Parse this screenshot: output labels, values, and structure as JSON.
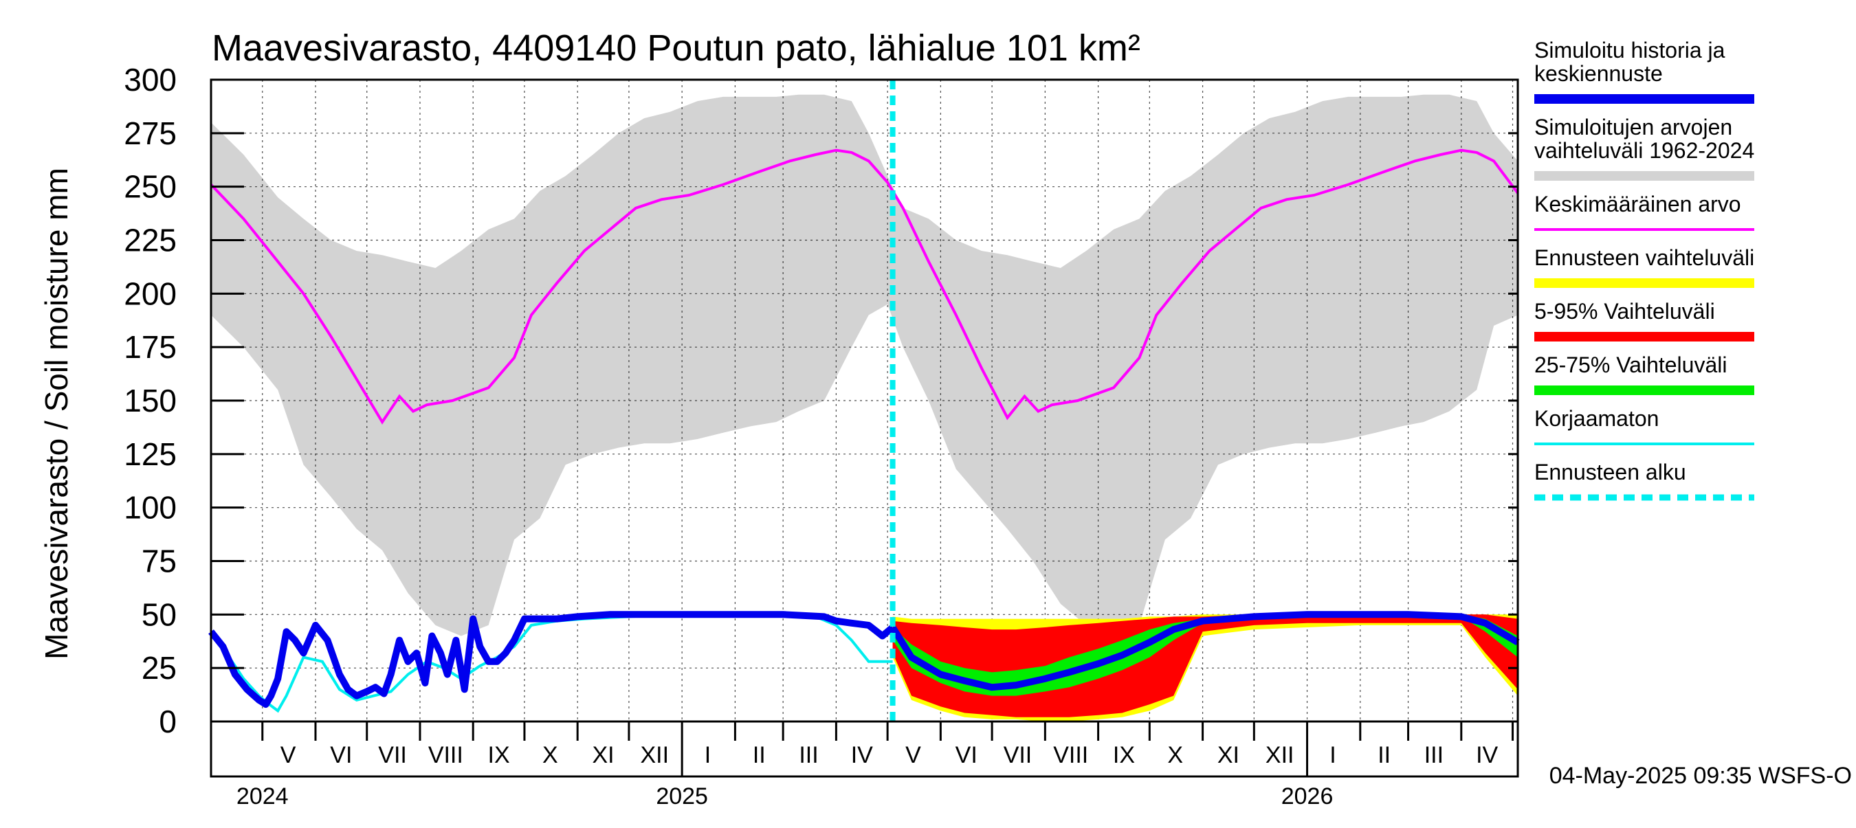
{
  "chart_data": {
    "type": "area",
    "title": "Maavesivarasto, 4409140 Poutun pato, lähialue 101 km²",
    "ylabel": "Maavesivarasto / Soil moisture   mm",
    "ylim": [
      0,
      300
    ],
    "y_ticks": [
      0,
      25,
      50,
      75,
      100,
      125,
      150,
      175,
      200,
      225,
      250,
      275,
      300
    ],
    "x_start": "2024-04-01",
    "x_end": "2026-05-04",
    "grid": true,
    "month_labels": [
      "V",
      "VI",
      "VII",
      "VIII",
      "IX",
      "X",
      "XI",
      "XII",
      "I",
      "II",
      "III",
      "IV",
      "V",
      "VI",
      "VII",
      "VIII",
      "IX",
      "X",
      "XI",
      "XII",
      "I",
      "II",
      "III",
      "IV"
    ],
    "month_label_dates": [
      "2024-05-16",
      "2024-06-16",
      "2024-07-16",
      "2024-08-16",
      "2024-09-16",
      "2024-10-16",
      "2024-11-16",
      "2024-12-16",
      "2025-01-16",
      "2025-02-15",
      "2025-03-16",
      "2025-04-16",
      "2025-05-16",
      "2025-06-16",
      "2025-07-16",
      "2025-08-16",
      "2025-09-16",
      "2025-10-16",
      "2025-11-16",
      "2025-12-16",
      "2026-01-16",
      "2026-02-15",
      "2026-03-16",
      "2026-04-16"
    ],
    "year_labels": [
      {
        "label": "2024",
        "date": "2024-05-01"
      },
      {
        "label": "2025",
        "date": "2025-01-01"
      },
      {
        "label": "2026",
        "date": "2026-01-01"
      }
    ],
    "forecast_start": "2025-05-04",
    "footer": "04-May-2025 09:35 WSFS-O",
    "colors": {
      "history": "#0000ee",
      "range": "#d3d3d3",
      "mean": "#ff00ff",
      "forecast_range": "#ffff00",
      "p5_95": "#ff0000",
      "p25_75": "#00ee00",
      "uncorrected": "#00eeee",
      "forecast_start": "#00eeee"
    },
    "legend": [
      {
        "label": "Simuloitu historia ja keskiennuste",
        "key": "history",
        "style": "thick"
      },
      {
        "label": "Simuloitujen arvojen vaihteluväli 1962-2024",
        "key": "range",
        "style": "thick"
      },
      {
        "label": "Keskimääräinen arvo",
        "key": "mean",
        "style": "thin"
      },
      {
        "label": "Ennusteen vaihteluväli",
        "key": "forecast_range",
        "style": "thick"
      },
      {
        "label": "5-95% Vaihteluväli",
        "key": "p5_95",
        "style": "thick"
      },
      {
        "label": "25-75% Vaihteluväli",
        "key": "p25_75",
        "style": "thick"
      },
      {
        "label": "Korjaamaton",
        "key": "uncorrected",
        "style": "thin"
      },
      {
        "label": "Ennusteen alku",
        "key": "forecast_start",
        "style": "dashed"
      }
    ],
    "range_band": {
      "x": [
        "2024-04-01",
        "2024-04-20",
        "2024-05-10",
        "2024-05-25",
        "2024-06-10",
        "2024-06-25",
        "2024-07-10",
        "2024-07-25",
        "2024-08-10",
        "2024-08-25",
        "2024-09-10",
        "2024-09-25",
        "2024-10-10",
        "2024-10-25",
        "2024-11-10",
        "2024-11-25",
        "2024-12-10",
        "2024-12-25",
        "2025-01-10",
        "2025-01-25",
        "2025-02-10",
        "2025-02-25",
        "2025-03-10",
        "2025-03-25",
        "2025-04-10",
        "2025-04-20",
        "2025-05-01",
        "2025-05-10",
        "2025-05-25",
        "2025-06-10",
        "2025-06-25",
        "2025-07-10",
        "2025-07-25",
        "2025-08-10",
        "2025-08-25",
        "2025-09-10",
        "2025-09-25",
        "2025-10-10",
        "2025-10-25",
        "2025-11-10",
        "2025-11-25",
        "2025-12-10",
        "2025-12-25",
        "2026-01-10",
        "2026-01-25",
        "2026-02-10",
        "2026-02-25",
        "2026-03-10",
        "2026-03-25",
        "2026-04-10",
        "2026-04-20",
        "2026-05-04"
      ],
      "low": [
        190,
        175,
        155,
        120,
        105,
        90,
        80,
        60,
        45,
        40,
        45,
        85,
        95,
        120,
        125,
        128,
        130,
        130,
        132,
        135,
        138,
        140,
        145,
        150,
        175,
        190,
        195,
        175,
        150,
        118,
        104,
        90,
        75,
        55,
        45,
        42,
        45,
        85,
        95,
        120,
        125,
        128,
        130,
        130,
        132,
        135,
        138,
        140,
        145,
        155,
        185,
        190
      ],
      "high": [
        280,
        265,
        245,
        235,
        225,
        220,
        218,
        215,
        212,
        220,
        230,
        235,
        248,
        255,
        265,
        275,
        282,
        285,
        290,
        292,
        292,
        292,
        293,
        293,
        290,
        275,
        255,
        240,
        235,
        225,
        220,
        218,
        215,
        212,
        220,
        230,
        235,
        248,
        255,
        265,
        275,
        282,
        285,
        290,
        292,
        292,
        292,
        293,
        293,
        290,
        275,
        262
      ]
    },
    "mean_series": {
      "x": [
        "2024-04-01",
        "2024-04-20",
        "2024-05-10",
        "2024-05-25",
        "2024-06-10",
        "2024-06-25",
        "2024-07-10",
        "2024-07-20",
        "2024-07-28",
        "2024-08-05",
        "2024-08-20",
        "2024-09-10",
        "2024-09-25",
        "2024-10-05",
        "2024-10-20",
        "2024-11-05",
        "2024-11-20",
        "2024-12-05",
        "2024-12-20",
        "2025-01-05",
        "2025-01-25",
        "2025-02-15",
        "2025-03-05",
        "2025-03-20",
        "2025-04-01",
        "2025-04-10",
        "2025-04-20",
        "2025-05-01",
        "2025-05-10",
        "2025-05-25",
        "2025-06-10",
        "2025-06-25",
        "2025-07-10",
        "2025-07-20",
        "2025-07-28",
        "2025-08-05",
        "2025-08-20",
        "2025-09-10",
        "2025-09-25",
        "2025-10-05",
        "2025-10-20",
        "2025-11-05",
        "2025-11-20",
        "2025-12-05",
        "2025-12-20",
        "2026-01-05",
        "2026-01-25",
        "2026-02-15",
        "2026-03-05",
        "2026-03-20",
        "2026-04-01",
        "2026-04-10",
        "2026-04-20",
        "2026-05-04"
      ],
      "y": [
        251,
        235,
        215,
        200,
        180,
        160,
        140,
        152,
        145,
        148,
        150,
        156,
        170,
        190,
        205,
        220,
        230,
        240,
        244,
        246,
        251,
        257,
        262,
        265,
        267,
        266,
        262,
        252,
        240,
        215,
        190,
        165,
        142,
        152,
        145,
        148,
        150,
        156,
        170,
        190,
        205,
        220,
        230,
        240,
        244,
        246,
        251,
        257,
        262,
        265,
        267,
        266,
        262,
        247
      ]
    },
    "history_series": {
      "x": [
        "2024-04-01",
        "2024-04-08",
        "2024-04-15",
        "2024-04-22",
        "2024-04-29",
        "2024-05-03",
        "2024-05-06",
        "2024-05-10",
        "2024-05-15",
        "2024-05-20",
        "2024-05-25",
        "2024-06-01",
        "2024-06-08",
        "2024-06-15",
        "2024-06-20",
        "2024-06-25",
        "2024-07-01",
        "2024-07-06",
        "2024-07-11",
        "2024-07-15",
        "2024-07-20",
        "2024-07-25",
        "2024-07-30",
        "2024-08-04",
        "2024-08-08",
        "2024-08-13",
        "2024-08-17",
        "2024-08-22",
        "2024-08-27",
        "2024-09-01",
        "2024-09-05",
        "2024-09-10",
        "2024-09-15",
        "2024-09-20",
        "2024-09-25",
        "2024-10-01",
        "2024-10-10",
        "2024-10-20",
        "2024-11-01",
        "2024-11-20",
        "2024-12-10",
        "2025-01-01",
        "2025-02-01",
        "2025-03-01",
        "2025-03-25",
        "2025-04-01",
        "2025-04-10",
        "2025-04-20",
        "2025-04-28",
        "2025-05-04"
      ],
      "y": [
        42,
        35,
        22,
        15,
        10,
        8,
        12,
        20,
        42,
        38,
        32,
        45,
        38,
        22,
        15,
        12,
        14,
        16,
        13,
        22,
        38,
        28,
        32,
        18,
        40,
        32,
        22,
        38,
        15,
        48,
        35,
        28,
        28,
        32,
        38,
        48,
        48,
        48,
        49,
        50,
        50,
        50,
        50,
        50,
        49,
        47,
        46,
        45,
        40,
        44
      ]
    },
    "uncorrected_series": {
      "x": [
        "2024-04-01",
        "2024-04-10",
        "2024-04-20",
        "2024-04-29",
        "2024-05-05",
        "2024-05-10",
        "2024-05-15",
        "2024-05-25",
        "2024-06-05",
        "2024-06-15",
        "2024-06-25",
        "2024-07-05",
        "2024-07-15",
        "2024-07-25",
        "2024-08-05",
        "2024-08-15",
        "2024-08-25",
        "2024-09-05",
        "2024-09-15",
        "2024-09-25",
        "2024-10-05",
        "2024-10-20",
        "2024-11-05",
        "2024-12-01",
        "2025-01-01",
        "2025-02-01",
        "2025-03-01",
        "2025-03-20",
        "2025-04-01",
        "2025-04-10",
        "2025-04-20",
        "2025-05-04"
      ],
      "y": [
        42,
        32,
        20,
        12,
        8,
        5,
        12,
        30,
        28,
        15,
        10,
        12,
        14,
        22,
        28,
        25,
        20,
        26,
        30,
        35,
        45,
        47,
        48,
        49,
        50,
        50,
        50,
        49,
        45,
        38,
        28,
        28
      ]
    },
    "forecast_band_yellow": {
      "x": [
        "2025-05-04",
        "2025-05-15",
        "2025-06-01",
        "2025-06-15",
        "2025-07-01",
        "2025-07-15",
        "2025-08-01",
        "2025-08-15",
        "2025-09-01",
        "2025-09-15",
        "2025-10-01",
        "2025-10-15",
        "2025-11-01",
        "2025-12-01",
        "2026-01-01",
        "2026-02-01",
        "2026-03-01",
        "2026-04-01",
        "2026-04-15",
        "2026-05-04"
      ],
      "low": [
        30,
        10,
        5,
        2,
        1,
        1,
        0,
        0,
        1,
        2,
        5,
        10,
        40,
        43,
        44,
        45,
        45,
        45,
        30,
        12
      ],
      "high": [
        49,
        48,
        48,
        48,
        48,
        48,
        48,
        48,
        48,
        48,
        49,
        49,
        50,
        50,
        50,
        50,
        50,
        50,
        50,
        50
      ]
    },
    "forecast_band_red": {
      "x": [
        "2025-05-04",
        "2025-05-15",
        "2025-06-01",
        "2025-06-15",
        "2025-07-01",
        "2025-07-15",
        "2025-08-01",
        "2025-08-15",
        "2025-09-01",
        "2025-09-15",
        "2025-10-01",
        "2025-10-15",
        "2025-11-01",
        "2025-12-01",
        "2026-01-01",
        "2026-02-01",
        "2026-03-01",
        "2026-04-01",
        "2026-04-15",
        "2026-05-04"
      ],
      "low": [
        32,
        12,
        7,
        4,
        3,
        2,
        2,
        2,
        3,
        4,
        8,
        12,
        42,
        45,
        46,
        46,
        46,
        46,
        32,
        15
      ],
      "high": [
        47,
        46,
        45,
        44,
        43,
        43,
        44,
        45,
        46,
        47,
        48,
        49,
        49,
        50,
        50,
        50,
        50,
        50,
        50,
        48
      ]
    },
    "forecast_band_green": {
      "x": [
        "2025-05-04",
        "2025-05-15",
        "2025-06-01",
        "2025-06-15",
        "2025-07-01",
        "2025-07-15",
        "2025-08-01",
        "2025-08-15",
        "2025-09-01",
        "2025-09-15",
        "2025-10-01",
        "2025-10-15",
        "2025-11-01",
        "2025-12-01",
        "2026-01-01",
        "2026-02-01",
        "2026-03-01",
        "2026-04-01",
        "2026-04-15",
        "2026-05-04"
      ],
      "low": [
        38,
        25,
        18,
        14,
        12,
        12,
        14,
        16,
        20,
        24,
        30,
        38,
        46,
        48,
        49,
        49,
        49,
        49,
        42,
        30
      ],
      "high": [
        44,
        36,
        28,
        25,
        23,
        24,
        26,
        30,
        34,
        38,
        43,
        46,
        48,
        49,
        50,
        50,
        50,
        50,
        48,
        40
      ]
    },
    "forecast_median": {
      "x": [
        "2025-05-04",
        "2025-05-15",
        "2025-06-01",
        "2025-06-15",
        "2025-07-01",
        "2025-07-15",
        "2025-08-01",
        "2025-08-15",
        "2025-09-01",
        "2025-09-15",
        "2025-10-01",
        "2025-10-15",
        "2025-11-01",
        "2025-12-01",
        "2026-01-01",
        "2026-02-01",
        "2026-03-01",
        "2026-04-01",
        "2026-04-15",
        "2026-05-04"
      ],
      "y": [
        44,
        30,
        22,
        19,
        16,
        17,
        20,
        23,
        27,
        31,
        37,
        43,
        47,
        49,
        50,
        50,
        50,
        49,
        46,
        37
      ]
    }
  }
}
